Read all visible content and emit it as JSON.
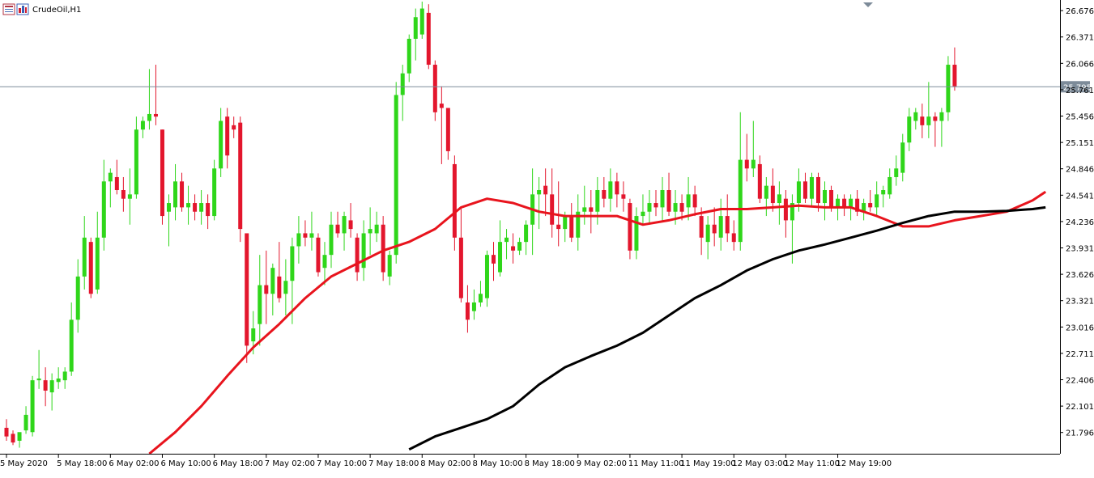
{
  "window": {
    "title": "CrudeOil,H1",
    "icons": [
      "chart-window-icon",
      "indicator-icon"
    ]
  },
  "colors": {
    "background": "#ffffff",
    "bull": "#2fd61a",
    "bear": "#e3162d",
    "ma_fast": "#e8141d",
    "ma_slow": "#000000",
    "axis": "#000000",
    "price_line": "#7d8b99",
    "price_tag_bg": "#7d8b99",
    "price_tag_text": "#ffffff"
  },
  "chart_data": {
    "type": "candlestick",
    "symbol": "CrudeOil",
    "timeframe": "H1",
    "grid": false,
    "ylim": [
      21.55,
      26.78
    ],
    "y_ticks": [
      "26.676",
      "26.371",
      "26.066",
      "25.761",
      "25.456",
      "25.151",
      "24.846",
      "24.541",
      "24.236",
      "23.931",
      "23.626",
      "23.321",
      "23.016",
      "22.711",
      "22.406",
      "22.101",
      "21.796"
    ],
    "x_ticks": [
      {
        "label": "5 May 2020",
        "index": 0
      },
      {
        "label": "5 May 18:00",
        "index": 8
      },
      {
        "label": "6 May 02:00",
        "index": 16
      },
      {
        "label": "6 May 10:00",
        "index": 24
      },
      {
        "label": "6 May 18:00",
        "index": 32
      },
      {
        "label": "7 May 02:00",
        "index": 40
      },
      {
        "label": "7 May 10:00",
        "index": 48
      },
      {
        "label": "7 May 18:00",
        "index": 56
      },
      {
        "label": "8 May 02:00",
        "index": 64
      },
      {
        "label": "8 May 10:00",
        "index": 72
      },
      {
        "label": "8 May 18:00",
        "index": 80
      },
      {
        "label": "9 May 02:00",
        "index": 88
      },
      {
        "label": "11 May 11:00",
        "index": 96
      },
      {
        "label": "11 May 19:00",
        "index": 104
      },
      {
        "label": "12 May 03:00",
        "index": 112
      },
      {
        "label": "12 May 11:00",
        "index": 120
      },
      {
        "label": "12 May 19:00",
        "index": 128
      }
    ],
    "current_price": "25.795",
    "candles": [
      [
        21.85,
        21.95,
        21.7,
        21.75
      ],
      [
        21.78,
        21.82,
        21.65,
        21.68
      ],
      [
        21.7,
        21.75,
        21.62,
        21.8
      ],
      [
        21.82,
        22.1,
        21.78,
        22.0
      ],
      [
        21.8,
        22.45,
        21.75,
        22.4
      ],
      [
        22.4,
        22.75,
        22.3,
        22.42
      ],
      [
        22.4,
        22.55,
        22.1,
        22.28
      ],
      [
        22.26,
        22.48,
        22.05,
        22.4
      ],
      [
        22.38,
        22.55,
        22.3,
        22.42
      ],
      [
        22.4,
        22.55,
        22.3,
        22.5
      ],
      [
        22.5,
        23.3,
        22.45,
        23.1
      ],
      [
        23.1,
        23.8,
        22.95,
        23.6
      ],
      [
        23.6,
        24.3,
        23.45,
        24.05
      ],
      [
        24.0,
        24.05,
        23.35,
        23.4
      ],
      [
        23.45,
        24.35,
        23.4,
        24.05
      ],
      [
        24.05,
        24.95,
        23.9,
        24.7
      ],
      [
        24.7,
        24.85,
        24.4,
        24.8
      ],
      [
        24.75,
        24.95,
        24.55,
        24.6
      ],
      [
        24.6,
        24.75,
        24.35,
        24.5
      ],
      [
        24.5,
        24.85,
        24.2,
        24.55
      ],
      [
        24.55,
        25.45,
        24.5,
        25.3
      ],
      [
        25.3,
        25.45,
        25.2,
        25.4
      ],
      [
        25.4,
        26.0,
        25.3,
        25.48
      ],
      [
        25.48,
        26.05,
        25.35,
        25.45
      ],
      [
        25.3,
        25.3,
        24.2,
        24.3
      ],
      [
        24.35,
        24.55,
        23.95,
        24.45
      ],
      [
        24.4,
        24.9,
        24.25,
        24.7
      ],
      [
        24.7,
        24.8,
        24.35,
        24.4
      ],
      [
        24.4,
        24.65,
        24.2,
        24.45
      ],
      [
        24.45,
        24.55,
        24.25,
        24.35
      ],
      [
        24.35,
        24.6,
        24.2,
        24.45
      ],
      [
        24.45,
        24.55,
        24.15,
        24.3
      ],
      [
        24.3,
        24.95,
        24.25,
        24.85
      ],
      [
        24.85,
        25.55,
        24.75,
        25.4
      ],
      [
        25.45,
        25.55,
        24.85,
        25.0
      ],
      [
        25.35,
        25.45,
        25.2,
        25.3
      ],
      [
        25.38,
        25.45,
        24.0,
        24.15
      ],
      [
        24.1,
        24.1,
        22.6,
        22.8
      ],
      [
        22.85,
        23.2,
        22.7,
        23.0
      ],
      [
        23.05,
        23.85,
        22.8,
        23.5
      ],
      [
        23.5,
        23.9,
        23.05,
        23.4
      ],
      [
        23.4,
        23.75,
        23.15,
        23.7
      ],
      [
        23.6,
        24.0,
        23.3,
        23.35
      ],
      [
        23.4,
        23.8,
        23.15,
        23.55
      ],
      [
        23.55,
        24.05,
        23.05,
        23.95
      ],
      [
        23.95,
        24.3,
        23.75,
        24.1
      ],
      [
        24.1,
        24.25,
        23.95,
        24.05
      ],
      [
        24.05,
        24.35,
        23.9,
        24.1
      ],
      [
        24.05,
        24.1,
        23.6,
        23.65
      ],
      [
        23.7,
        24.0,
        23.5,
        23.85
      ],
      [
        23.85,
        24.35,
        23.7,
        24.2
      ],
      [
        24.2,
        24.35,
        24.05,
        24.1
      ],
      [
        24.1,
        24.35,
        23.9,
        24.3
      ],
      [
        24.25,
        24.45,
        24.05,
        24.15
      ],
      [
        24.05,
        24.1,
        23.55,
        23.65
      ],
      [
        23.7,
        24.25,
        23.55,
        24.1
      ],
      [
        24.1,
        24.4,
        23.85,
        24.15
      ],
      [
        24.1,
        24.35,
        24.0,
        24.2
      ],
      [
        24.2,
        24.3,
        23.55,
        23.65
      ],
      [
        23.6,
        23.9,
        23.5,
        23.85
      ],
      [
        23.85,
        25.85,
        23.75,
        25.7
      ],
      [
        25.7,
        26.05,
        25.4,
        25.95
      ],
      [
        25.95,
        26.4,
        25.85,
        26.35
      ],
      [
        26.35,
        26.7,
        26.1,
        26.6
      ],
      [
        26.4,
        26.8,
        26.35,
        26.7
      ],
      [
        26.65,
        26.75,
        26.0,
        26.05
      ],
      [
        26.05,
        26.1,
        25.4,
        25.5
      ],
      [
        25.6,
        25.8,
        24.9,
        25.55
      ],
      [
        25.55,
        25.55,
        24.95,
        25.05
      ],
      [
        24.9,
        25.0,
        23.9,
        24.05
      ],
      [
        24.05,
        24.4,
        23.3,
        23.35
      ],
      [
        23.3,
        23.5,
        22.95,
        23.1
      ],
      [
        23.2,
        23.45,
        23.1,
        23.3
      ],
      [
        23.3,
        23.55,
        23.25,
        23.4
      ],
      [
        23.35,
        23.9,
        23.25,
        23.85
      ],
      [
        23.85,
        24.0,
        23.55,
        23.75
      ],
      [
        23.65,
        24.25,
        23.6,
        24.0
      ],
      [
        24.0,
        24.15,
        23.8,
        24.05
      ],
      [
        23.95,
        24.1,
        23.75,
        23.9
      ],
      [
        23.9,
        24.05,
        23.85,
        24.0
      ],
      [
        24.0,
        24.25,
        23.85,
        24.2
      ],
      [
        24.2,
        24.85,
        23.85,
        24.55
      ],
      [
        24.55,
        24.75,
        24.15,
        24.6
      ],
      [
        24.65,
        24.85,
        24.3,
        24.55
      ],
      [
        24.55,
        24.85,
        24.05,
        24.2
      ],
      [
        24.2,
        24.7,
        23.95,
        24.15
      ],
      [
        24.15,
        24.35,
        24.0,
        24.3
      ],
      [
        24.3,
        24.45,
        24.0,
        24.05
      ],
      [
        24.05,
        24.55,
        23.9,
        24.35
      ],
      [
        24.35,
        24.65,
        24.2,
        24.4
      ],
      [
        24.4,
        24.6,
        24.1,
        24.35
      ],
      [
        24.35,
        24.75,
        24.2,
        24.6
      ],
      [
        24.6,
        24.75,
        24.4,
        24.5
      ],
      [
        24.5,
        24.85,
        24.35,
        24.7
      ],
      [
        24.7,
        24.8,
        24.4,
        24.55
      ],
      [
        24.55,
        24.7,
        24.35,
        24.5
      ],
      [
        24.45,
        24.5,
        23.8,
        23.9
      ],
      [
        23.9,
        24.4,
        23.8,
        24.3
      ],
      [
        24.3,
        24.55,
        24.2,
        24.35
      ],
      [
        24.35,
        24.6,
        24.2,
        24.45
      ],
      [
        24.45,
        24.6,
        24.3,
        24.4
      ],
      [
        24.4,
        24.75,
        24.25,
        24.6
      ],
      [
        24.6,
        24.8,
        24.3,
        24.35
      ],
      [
        24.35,
        24.6,
        24.2,
        24.45
      ],
      [
        24.45,
        24.55,
        24.25,
        24.35
      ],
      [
        24.4,
        24.75,
        24.25,
        24.55
      ],
      [
        24.55,
        24.65,
        24.3,
        24.4
      ],
      [
        24.3,
        24.4,
        23.85,
        24.05
      ],
      [
        24.0,
        24.3,
        23.8,
        24.2
      ],
      [
        24.2,
        24.4,
        23.95,
        24.1
      ],
      [
        24.05,
        24.5,
        23.9,
        24.3
      ],
      [
        24.3,
        24.55,
        24.0,
        24.1
      ],
      [
        24.1,
        24.25,
        23.9,
        24.0
      ],
      [
        24.0,
        25.5,
        23.9,
        24.95
      ],
      [
        24.95,
        25.25,
        24.7,
        24.85
      ],
      [
        24.85,
        25.4,
        24.75,
        24.95
      ],
      [
        24.9,
        25.0,
        24.45,
        24.5
      ],
      [
        24.5,
        24.75,
        24.3,
        24.65
      ],
      [
        24.65,
        24.85,
        24.35,
        24.45
      ],
      [
        24.45,
        24.7,
        24.2,
        24.55
      ],
      [
        24.5,
        24.6,
        24.05,
        24.25
      ],
      [
        24.25,
        24.55,
        23.75,
        24.45
      ],
      [
        24.45,
        24.85,
        24.35,
        24.7
      ],
      [
        24.7,
        24.8,
        24.45,
        24.5
      ],
      [
        24.5,
        24.8,
        24.4,
        24.75
      ],
      [
        24.75,
        24.8,
        24.35,
        24.45
      ],
      [
        24.45,
        24.7,
        24.25,
        24.6
      ],
      [
        24.6,
        24.65,
        24.35,
        24.4
      ],
      [
        24.4,
        24.55,
        24.25,
        24.5
      ],
      [
        24.5,
        24.55,
        24.3,
        24.4
      ],
      [
        24.4,
        24.55,
        24.25,
        24.5
      ],
      [
        24.5,
        24.6,
        24.3,
        24.35
      ],
      [
        24.35,
        24.5,
        24.25,
        24.45
      ],
      [
        24.45,
        24.6,
        24.35,
        24.4
      ],
      [
        24.4,
        24.7,
        24.3,
        24.55
      ],
      [
        24.55,
        24.65,
        24.4,
        24.6
      ],
      [
        24.55,
        24.85,
        24.5,
        24.75
      ],
      [
        24.75,
        25.0,
        24.65,
        24.85
      ],
      [
        24.8,
        25.25,
        24.7,
        25.15
      ],
      [
        25.15,
        25.55,
        25.05,
        25.45
      ],
      [
        25.4,
        25.55,
        25.3,
        25.5
      ],
      [
        25.45,
        25.6,
        25.2,
        25.35
      ],
      [
        25.35,
        25.85,
        25.2,
        25.45
      ],
      [
        25.45,
        25.5,
        25.1,
        25.4
      ],
      [
        25.4,
        25.55,
        25.1,
        25.5
      ],
      [
        25.5,
        26.15,
        25.4,
        26.05
      ],
      [
        26.05,
        26.25,
        25.75,
        25.8
      ]
    ],
    "series": [
      {
        "color": "#e8141d",
        "points": [
          [
            22,
            21.55
          ],
          [
            26,
            21.8
          ],
          [
            30,
            22.1
          ],
          [
            34,
            22.45
          ],
          [
            38,
            22.78
          ],
          [
            42,
            23.05
          ],
          [
            46,
            23.35
          ],
          [
            50,
            23.6
          ],
          [
            54,
            23.75
          ],
          [
            58,
            23.9
          ],
          [
            62,
            24.0
          ],
          [
            66,
            24.15
          ],
          [
            70,
            24.4
          ],
          [
            74,
            24.5
          ],
          [
            78,
            24.45
          ],
          [
            82,
            24.35
          ],
          [
            86,
            24.3
          ],
          [
            90,
            24.3
          ],
          [
            94,
            24.3
          ],
          [
            98,
            24.2
          ],
          [
            102,
            24.25
          ],
          [
            106,
            24.32
          ],
          [
            110,
            24.38
          ],
          [
            114,
            24.38
          ],
          [
            118,
            24.4
          ],
          [
            122,
            24.42
          ],
          [
            126,
            24.4
          ],
          [
            130,
            24.4
          ],
          [
            134,
            24.3
          ],
          [
            138,
            24.18
          ],
          [
            142,
            24.18
          ],
          [
            146,
            24.25
          ],
          [
            150,
            24.3
          ],
          [
            154,
            24.35
          ],
          [
            158,
            24.48
          ],
          [
            160,
            24.58
          ]
        ]
      },
      {
        "color": "#000000",
        "points": [
          [
            62,
            21.6
          ],
          [
            66,
            21.75
          ],
          [
            70,
            21.85
          ],
          [
            74,
            21.95
          ],
          [
            78,
            22.1
          ],
          [
            82,
            22.35
          ],
          [
            86,
            22.55
          ],
          [
            90,
            22.68
          ],
          [
            94,
            22.8
          ],
          [
            98,
            22.95
          ],
          [
            102,
            23.15
          ],
          [
            106,
            23.35
          ],
          [
            110,
            23.5
          ],
          [
            114,
            23.67
          ],
          [
            118,
            23.8
          ],
          [
            122,
            23.9
          ],
          [
            126,
            23.97
          ],
          [
            130,
            24.05
          ],
          [
            134,
            24.13
          ],
          [
            138,
            24.22
          ],
          [
            142,
            24.3
          ],
          [
            146,
            24.35
          ],
          [
            150,
            24.35
          ],
          [
            154,
            24.36
          ],
          [
            158,
            24.38
          ],
          [
            160,
            24.4
          ]
        ]
      }
    ]
  }
}
